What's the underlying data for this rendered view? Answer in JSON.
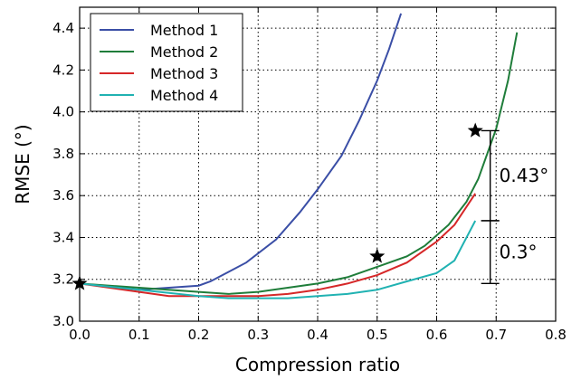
{
  "chart_data": {
    "type": "line",
    "xlabel": "Compression ratio",
    "ylabel": "RMSE (°)",
    "xlim": [
      0.0,
      0.8
    ],
    "ylim": [
      3.0,
      4.5
    ],
    "xticks": [
      "0.0",
      "0.1",
      "0.2",
      "0.3",
      "0.4",
      "0.5",
      "0.6",
      "0.7",
      "0.8"
    ],
    "yticks": [
      "3.0",
      "3.2",
      "3.4",
      "3.6",
      "3.8",
      "4.0",
      "4.2",
      "4.4"
    ],
    "grid": true,
    "legend_position": "top-left",
    "series": [
      {
        "name": "Method 1",
        "color": "#3a4ea6",
        "x": [
          0.0,
          0.1,
          0.2,
          0.22,
          0.28,
          0.33,
          0.37,
          0.4,
          0.44,
          0.47,
          0.5,
          0.52,
          0.54
        ],
        "y": [
          3.18,
          3.15,
          3.17,
          3.19,
          3.28,
          3.39,
          3.52,
          3.63,
          3.79,
          3.96,
          4.15,
          4.3,
          4.47
        ]
      },
      {
        "name": "Method 2",
        "color": "#1f7d3a",
        "x": [
          0.0,
          0.1,
          0.2,
          0.25,
          0.3,
          0.35,
          0.4,
          0.45,
          0.5,
          0.55,
          0.58,
          0.62,
          0.65,
          0.67,
          0.7,
          0.72,
          0.735
        ],
        "y": [
          3.18,
          3.16,
          3.14,
          3.13,
          3.14,
          3.16,
          3.18,
          3.21,
          3.26,
          3.31,
          3.36,
          3.46,
          3.57,
          3.68,
          3.92,
          4.15,
          4.38
        ]
      },
      {
        "name": "Method 3",
        "color": "#d62728",
        "x": [
          0.0,
          0.1,
          0.15,
          0.2,
          0.25,
          0.3,
          0.35,
          0.4,
          0.45,
          0.5,
          0.55,
          0.6,
          0.63,
          0.665
        ],
        "y": [
          3.18,
          3.14,
          3.12,
          3.12,
          3.12,
          3.12,
          3.13,
          3.15,
          3.18,
          3.22,
          3.28,
          3.38,
          3.46,
          3.61
        ]
      },
      {
        "name": "Method 4",
        "color": "#20b2b2",
        "x": [
          0.0,
          0.1,
          0.2,
          0.25,
          0.3,
          0.35,
          0.4,
          0.45,
          0.5,
          0.55,
          0.6,
          0.63,
          0.665
        ],
        "y": [
          3.18,
          3.15,
          3.12,
          3.11,
          3.11,
          3.11,
          3.12,
          3.13,
          3.15,
          3.19,
          3.23,
          3.29,
          3.48
        ]
      }
    ],
    "markers": [
      {
        "x": 0.5,
        "y": 3.31
      },
      {
        "x": 0.665,
        "y": 3.91
      },
      {
        "x": 0.0,
        "y": 3.18
      }
    ],
    "annotations": [
      {
        "text": "0.43°",
        "y_from": 3.48,
        "y_to": 3.91,
        "x": 0.69
      },
      {
        "text": "0.3°",
        "y_from": 3.18,
        "y_to": 3.48,
        "x": 0.69
      }
    ]
  }
}
